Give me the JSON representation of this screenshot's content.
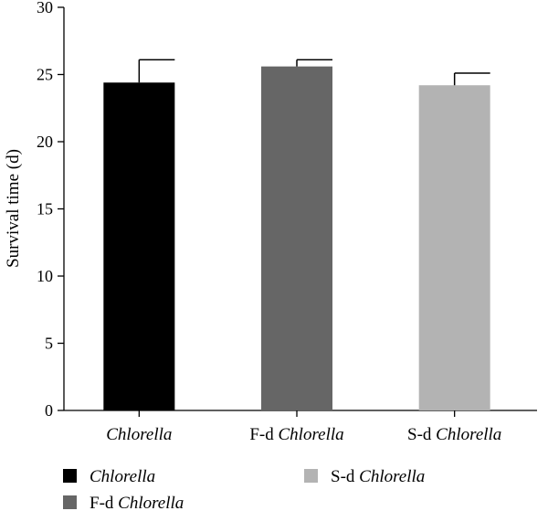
{
  "chart_data": {
    "type": "bar",
    "ylabel": "Survival time (d)",
    "ylim": [
      0,
      30
    ],
    "yticks": [
      0,
      5,
      10,
      15,
      20,
      25,
      30
    ],
    "categories": [
      {
        "prefix": "",
        "italic": "Chlorella"
      },
      {
        "prefix": "F-d ",
        "italic": "Chlorella"
      },
      {
        "prefix": "S-d ",
        "italic": "Chlorella"
      }
    ],
    "values": [
      24.4,
      25.6,
      24.2
    ],
    "errors": [
      1.7,
      0.5,
      0.9
    ],
    "colors": [
      "#000000",
      "#666666",
      "#b3b3b3"
    ],
    "legend": {
      "placement": "bottom",
      "entries": [
        {
          "prefix": "",
          "italic": "Chlorella",
          "color": "#000000"
        },
        {
          "prefix": "S-d ",
          "italic": "Chlorella",
          "color": "#b3b3b3"
        },
        {
          "prefix": "F-d ",
          "italic": "Chlorella",
          "color": "#666666"
        }
      ]
    },
    "grid": false
  }
}
